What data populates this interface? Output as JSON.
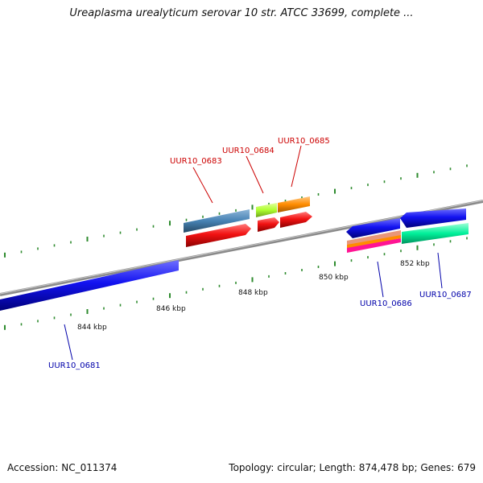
{
  "title": "Ureaplasma urealyticum serovar 10 str. ATCC 33699, complete ...",
  "footer": {
    "accession": "Accession: NC_011374",
    "summary": "Topology: circular; Length: 874,478 bp; Genes: 679"
  },
  "colors": {
    "backbone": "#888888",
    "tick": "#2e8b2e",
    "forward_label": "#cc0000",
    "reverse_label": "#0000aa"
  },
  "chart_data": {
    "type": "genome-map",
    "position_labels": [
      "844 kbp",
      "846 kbp",
      "848 kbp",
      "850 kbp",
      "852 kbp"
    ],
    "features": [
      {
        "label": "UUR10_0681",
        "strand": "-",
        "color": "#1010e8"
      },
      {
        "label": "UUR10_0683",
        "strand": "+",
        "color": "#4682b4"
      },
      {
        "label": "UUR10_0684",
        "strand": "+",
        "color": "#adff2f"
      },
      {
        "label": "UUR10_0685",
        "strand": "+",
        "color": "#ff8c00"
      },
      {
        "label": "UUR10_0686",
        "strand": "-",
        "color": "#e9967a"
      },
      {
        "label": "UUR10_0687",
        "strand": "-",
        "color": "#00fa9a"
      }
    ]
  }
}
